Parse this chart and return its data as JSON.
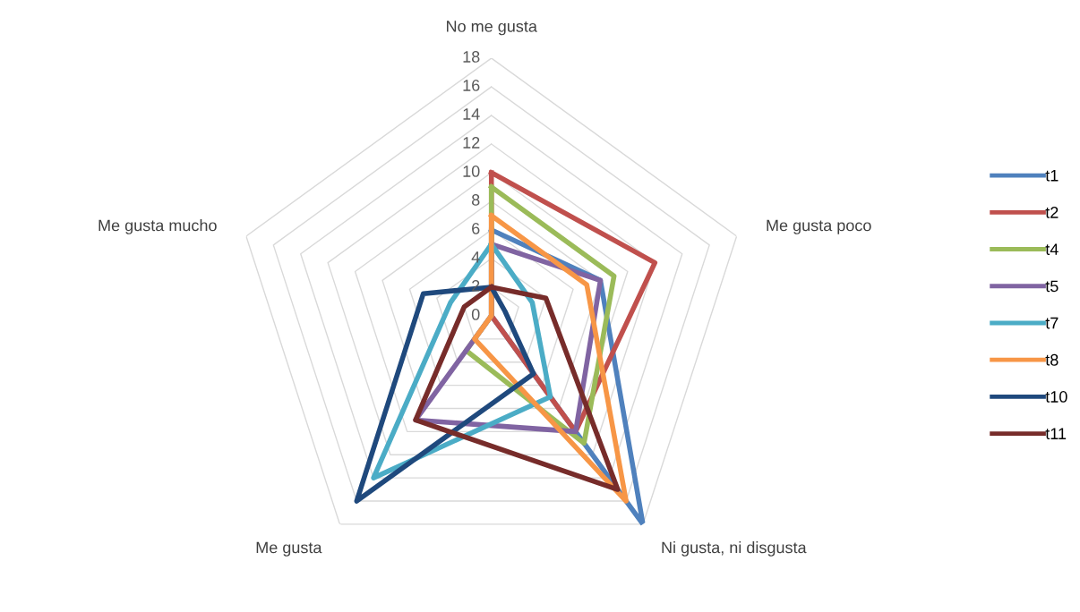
{
  "chart_data": {
    "type": "radar",
    "categories": [
      "No me gusta",
      "Me gusta poco",
      "Ni gusta, ni disgusta",
      "Me gusta",
      "Me gusta mucho"
    ],
    "ylim": [
      0,
      18
    ],
    "yticks": [
      0,
      2,
      4,
      6,
      8,
      10,
      12,
      14,
      16,
      18
    ],
    "grid": true,
    "legend": "right",
    "marker": "none",
    "series": [
      {
        "name": "t1",
        "color": "#4f81bd",
        "values": [
          6,
          8,
          18,
          0,
          0
        ]
      },
      {
        "name": "t2",
        "color": "#c0504d",
        "values": [
          10,
          12,
          10,
          0,
          0
        ]
      },
      {
        "name": "t4",
        "color": "#9bbb59",
        "values": [
          9,
          9,
          11,
          3,
          0
        ]
      },
      {
        "name": "t5",
        "color": "#8064a2",
        "values": [
          5,
          8,
          10,
          9,
          0
        ]
      },
      {
        "name": "t7",
        "color": "#4bacc6",
        "values": [
          5,
          3,
          7,
          14,
          3
        ]
      },
      {
        "name": "t8",
        "color": "#f79646",
        "values": [
          7,
          7,
          16,
          2,
          0
        ]
      },
      {
        "name": "t10",
        "color": "#1f497d",
        "values": [
          2,
          1,
          5,
          16,
          5
        ]
      },
      {
        "name": "t11",
        "color": "#772c2a",
        "values": [
          2,
          4,
          15,
          9,
          2
        ]
      }
    ]
  }
}
